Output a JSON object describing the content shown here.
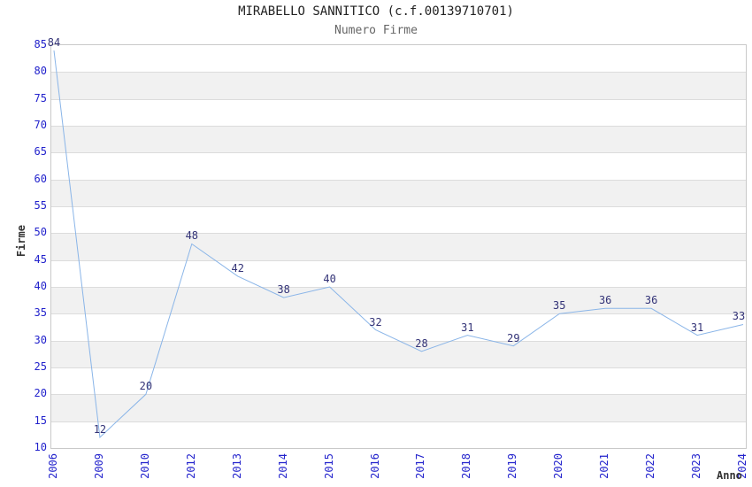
{
  "chart_data": {
    "type": "line",
    "title": "MIRABELLO SANNITICO (c.f.00139710701)",
    "subtitle": "Numero Firme",
    "xlabel": "Anno",
    "ylabel": "Firme",
    "categories": [
      "2006",
      "2009",
      "2010",
      "2012",
      "2013",
      "2014",
      "2015",
      "2016",
      "2017",
      "2018",
      "2019",
      "2020",
      "2021",
      "2022",
      "2023",
      "2024"
    ],
    "series": [
      {
        "name": "Numero Firme",
        "values": [
          84,
          12,
          20,
          48,
          42,
          38,
          40,
          32,
          28,
          31,
          29,
          35,
          36,
          36,
          31,
          33
        ]
      }
    ],
    "ylim": [
      10,
      85
    ],
    "ytick_step": 5,
    "grid": "horizontal",
    "background_bands": "alternating",
    "data_labels_visible": true,
    "legend": "none",
    "colors": {
      "line": "#8ab5e8",
      "data_label": "#333377",
      "tick_label": "#2222cc",
      "title": "#222222",
      "subtitle": "#666666",
      "axis_title": "#333333",
      "band_gray": "#f1f1f1",
      "gridline": "#dcdcdc",
      "plot_border": "#c9c9c9"
    }
  }
}
